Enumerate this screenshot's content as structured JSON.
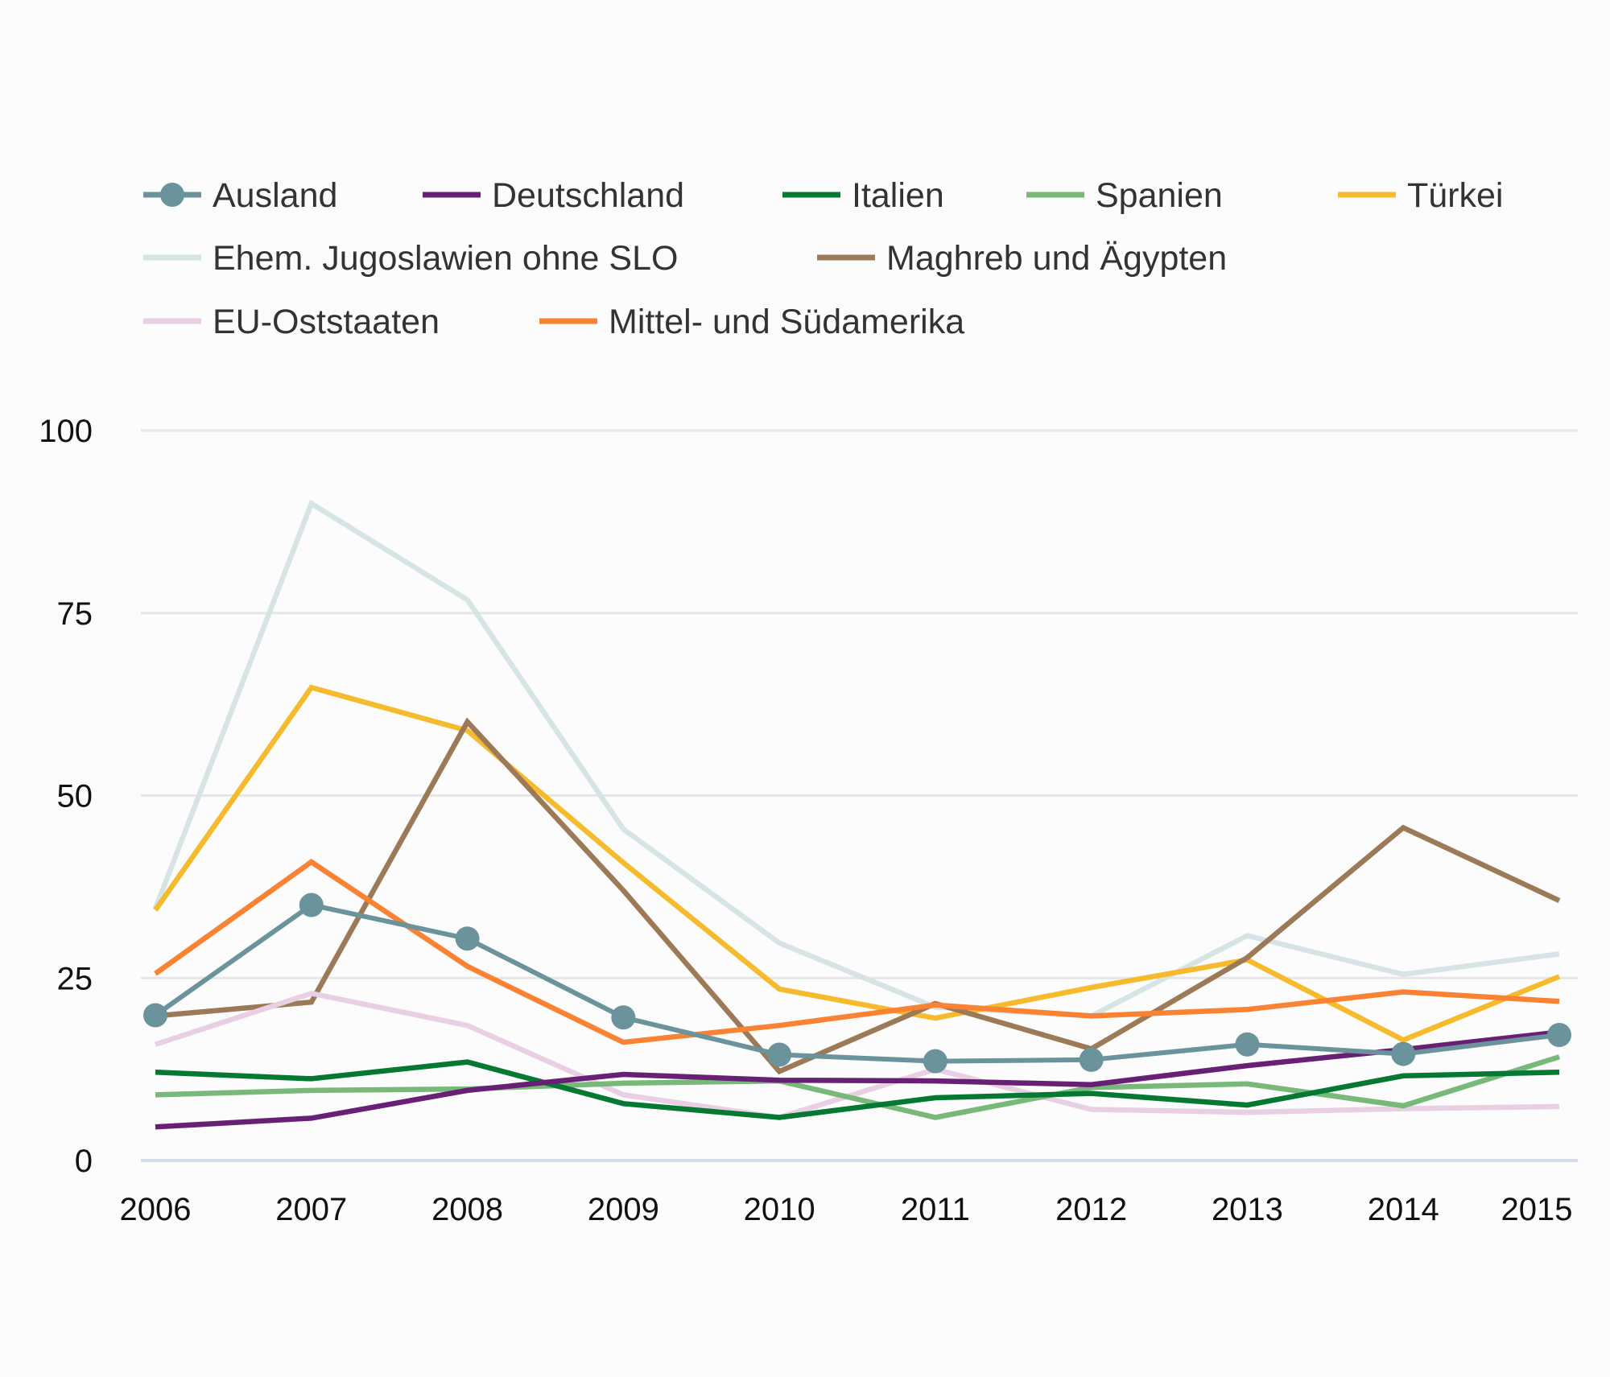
{
  "chart_data": {
    "type": "line",
    "title": "",
    "xlabel": "",
    "ylabel": "",
    "categories": [
      "2006",
      "2007",
      "2008",
      "2009",
      "2010",
      "2011",
      "2012",
      "2013",
      "2014",
      "2015"
    ],
    "ylim": [
      0,
      100
    ],
    "yticks": [
      "0",
      "25",
      "50",
      "75",
      "100"
    ],
    "grid": true,
    "legend_position": "top",
    "series": [
      {
        "name": "Ehem. Jugoslawien ohne SLO",
        "color": "#d6e4e6",
        "markers": false,
        "values": [
          34.5,
          90,
          76.8,
          45.4,
          29.8,
          21.0,
          19.8,
          30.8,
          25.5,
          28.3
        ]
      },
      {
        "name": "Türkei",
        "color": "#f5bb2c",
        "markers": false,
        "values": [
          34.3,
          64.8,
          58.9,
          40.8,
          23.5,
          19.5,
          23.7,
          27.5,
          16.5,
          25.2
        ]
      },
      {
        "name": "Maghreb und Ägypten",
        "color": "#9c7a57",
        "markers": false,
        "values": [
          19.8,
          21.7,
          60.1,
          37.0,
          12.2,
          21.5,
          15.3,
          27.8,
          45.6,
          35.6
        ]
      },
      {
        "name": "Mittel- und Südamerika",
        "color": "#fa8233",
        "markers": false,
        "values": [
          25.6,
          40.9,
          26.6,
          16.2,
          18.5,
          21.3,
          19.8,
          20.7,
          23.1,
          21.8
        ]
      },
      {
        "name": "EU-Oststaaten",
        "color": "#e9cfe3",
        "markers": false,
        "values": [
          15.9,
          22.9,
          18.5,
          9.0,
          5.9,
          12.5,
          7.0,
          6.6,
          7.1,
          7.4
        ]
      },
      {
        "name": "Spanien",
        "color": "#78b97a",
        "markers": false,
        "values": [
          9.0,
          9.6,
          9.8,
          10.6,
          10.9,
          5.9,
          10.0,
          10.5,
          7.5,
          14.2
        ]
      },
      {
        "name": "Italien",
        "color": "#057832",
        "markers": false,
        "values": [
          12.1,
          11.2,
          13.5,
          7.8,
          5.9,
          8.6,
          9.2,
          7.6,
          11.6,
          12.1
        ]
      },
      {
        "name": "Deutschland",
        "color": "#672074",
        "markers": false,
        "values": [
          4.6,
          5.8,
          9.6,
          11.8,
          11.0,
          10.9,
          10.4,
          13.0,
          15.2,
          17.6
        ]
      },
      {
        "name": "Ausland",
        "color": "#6a939b",
        "markers": true,
        "values": [
          19.9,
          35.0,
          30.4,
          19.6,
          14.5,
          13.6,
          13.8,
          15.9,
          14.6,
          17.2
        ]
      }
    ],
    "legend": [
      {
        "name": "Ausland",
        "color": "#6a939b",
        "marker": true
      },
      {
        "name": "Deutschland",
        "color": "#672074",
        "marker": false
      },
      {
        "name": "Italien",
        "color": "#057832",
        "marker": false
      },
      {
        "name": "Spanien",
        "color": "#78b97a",
        "marker": false
      },
      {
        "name": "Türkei",
        "color": "#f5bb2c",
        "marker": false
      },
      {
        "name": "Ehem. Jugoslawien ohne SLO",
        "color": "#d6e4e6",
        "marker": false
      },
      {
        "name": "Maghreb und Ägypten",
        "color": "#9c7a57",
        "marker": false
      },
      {
        "name": "EU-Oststaaten",
        "color": "#e9cfe3",
        "marker": false
      },
      {
        "name": "Mittel- und Südamerika",
        "color": "#fa8233",
        "marker": false
      }
    ]
  },
  "colors": {
    "background": "#fcfcfc",
    "gridline": "#e6e6e6",
    "baseline": "#d4dcec",
    "legend_text": "#333333",
    "tick_text": "#111111"
  }
}
